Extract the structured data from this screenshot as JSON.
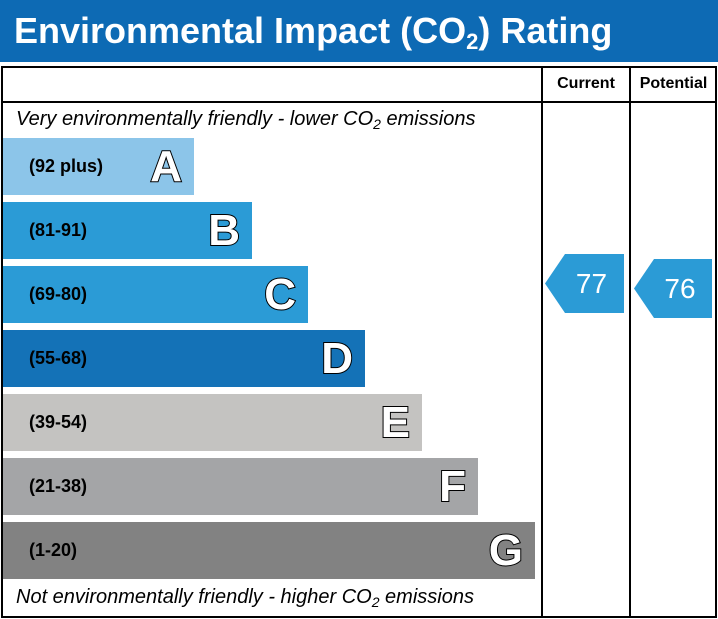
{
  "title": {
    "main": "Environmental Impact (CO",
    "sub": "2",
    "tail": ") Rating"
  },
  "columns": {
    "current": "Current",
    "potential": "Potential"
  },
  "notes": {
    "top": {
      "pre": "Very environmentally friendly - lower CO",
      "sub": "2",
      "post": " emissions"
    },
    "bottom": {
      "pre": "Not environmentally friendly - higher CO",
      "sub": "2",
      "post": " emissions"
    }
  },
  "chart_data": {
    "type": "bar",
    "bands": [
      {
        "letter": "A",
        "range": "(92 plus)",
        "color": "#8cc5e9"
      },
      {
        "letter": "B",
        "range": "(81-91)",
        "color": "#2b9bd6"
      },
      {
        "letter": "C",
        "range": "(69-80)",
        "color": "#2b9bd6"
      },
      {
        "letter": "D",
        "range": "(55-68)",
        "color": "#1472b7"
      },
      {
        "letter": "E",
        "range": "(39-54)",
        "color": "#c4c3c1"
      },
      {
        "letter": "F",
        "range": "(21-38)",
        "color": "#a4a5a7"
      },
      {
        "letter": "G",
        "range": "(1-20)",
        "color": "#828282"
      }
    ],
    "current": {
      "value": 77,
      "label": "77",
      "color": "#2b9bd6"
    },
    "potential": {
      "value": 76,
      "label": "76",
      "color": "#2b9bd6"
    }
  }
}
